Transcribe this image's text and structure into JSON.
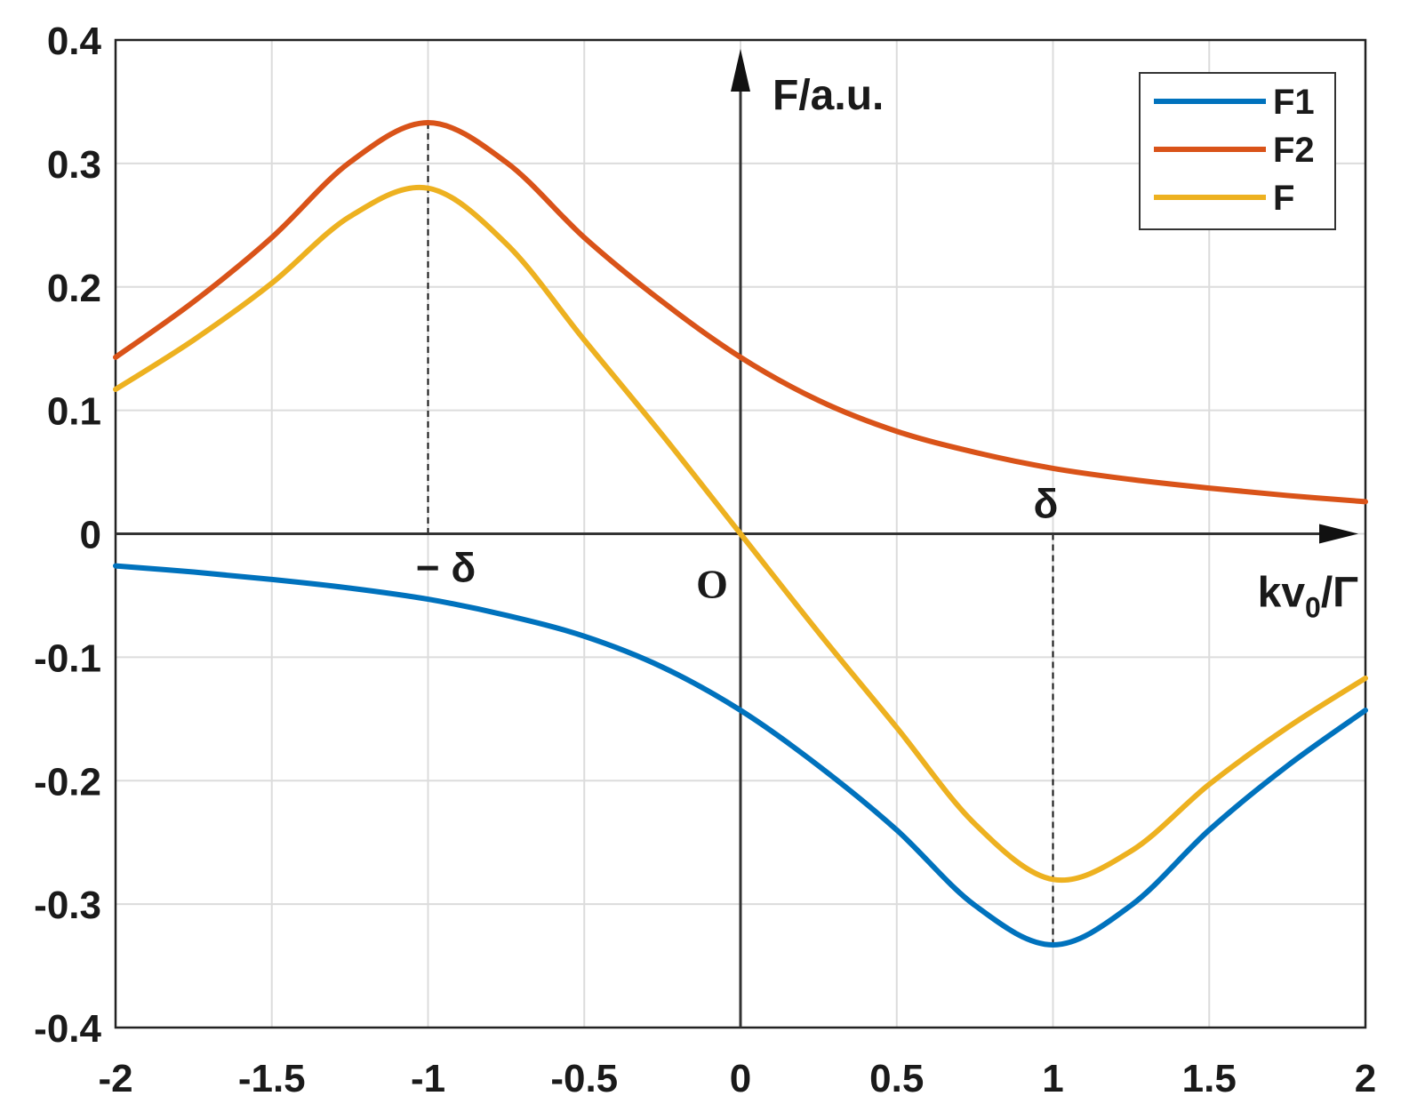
{
  "chart_data": {
    "type": "line",
    "xlim": [
      -2,
      2
    ],
    "ylim": [
      -0.4,
      0.4
    ],
    "xticks": [
      "-2",
      "-1.5",
      "-1",
      "-0.5",
      "0",
      "0.5",
      "1",
      "1.5",
      "2"
    ],
    "yticks": [
      "0.4",
      "0.3",
      "0.2",
      "0.1",
      "0",
      "-0.1",
      "-0.2",
      "-0.3",
      "-0.4"
    ],
    "grid": true,
    "legend_position": "top-right",
    "ylabel": "F/a.u.",
    "xlabel_main": "kv",
    "xlabel_sub": "0",
    "xlabel_tail": "/Γ",
    "annotations": {
      "neg_delta": "− δ",
      "pos_delta": "δ",
      "origin": "O"
    },
    "series": [
      {
        "name": "F1",
        "color": "#0072BD",
        "x": [
          -2,
          -1.75,
          -1.5,
          -1.25,
          -1,
          -0.75,
          -0.5,
          -0.25,
          0,
          0.25,
          0.5,
          0.75,
          1,
          1.25,
          1.5,
          1.75,
          2
        ],
        "y": [
          -0.026,
          -0.031,
          -0.037,
          -0.044,
          -0.053,
          -0.066,
          -0.083,
          -0.108,
          -0.143,
          -0.188,
          -0.24,
          -0.301,
          -0.333,
          -0.301,
          -0.24,
          -0.188,
          -0.143
        ]
      },
      {
        "name": "F2",
        "color": "#D95319",
        "x": [
          -2,
          -1.75,
          -1.5,
          -1.25,
          -1,
          -0.75,
          -0.5,
          -0.25,
          0,
          0.25,
          0.5,
          0.75,
          1,
          1.25,
          1.5,
          1.75,
          2
        ],
        "y": [
          0.143,
          0.188,
          0.24,
          0.301,
          0.333,
          0.301,
          0.24,
          0.188,
          0.143,
          0.108,
          0.083,
          0.066,
          0.053,
          0.044,
          0.037,
          0.031,
          0.026
        ]
      },
      {
        "name": "F",
        "color": "#EDB120",
        "x": [
          -2,
          -1.75,
          -1.5,
          -1.25,
          -1,
          -0.75,
          -0.5,
          -0.25,
          0,
          0.25,
          0.5,
          0.75,
          1,
          1.25,
          1.5,
          1.75,
          2
        ],
        "y": [
          0.117,
          0.157,
          0.203,
          0.257,
          0.28,
          0.235,
          0.157,
          0.08,
          0.0,
          -0.08,
          -0.157,
          -0.235,
          -0.28,
          -0.257,
          -0.203,
          -0.157,
          -0.117
        ]
      }
    ]
  }
}
